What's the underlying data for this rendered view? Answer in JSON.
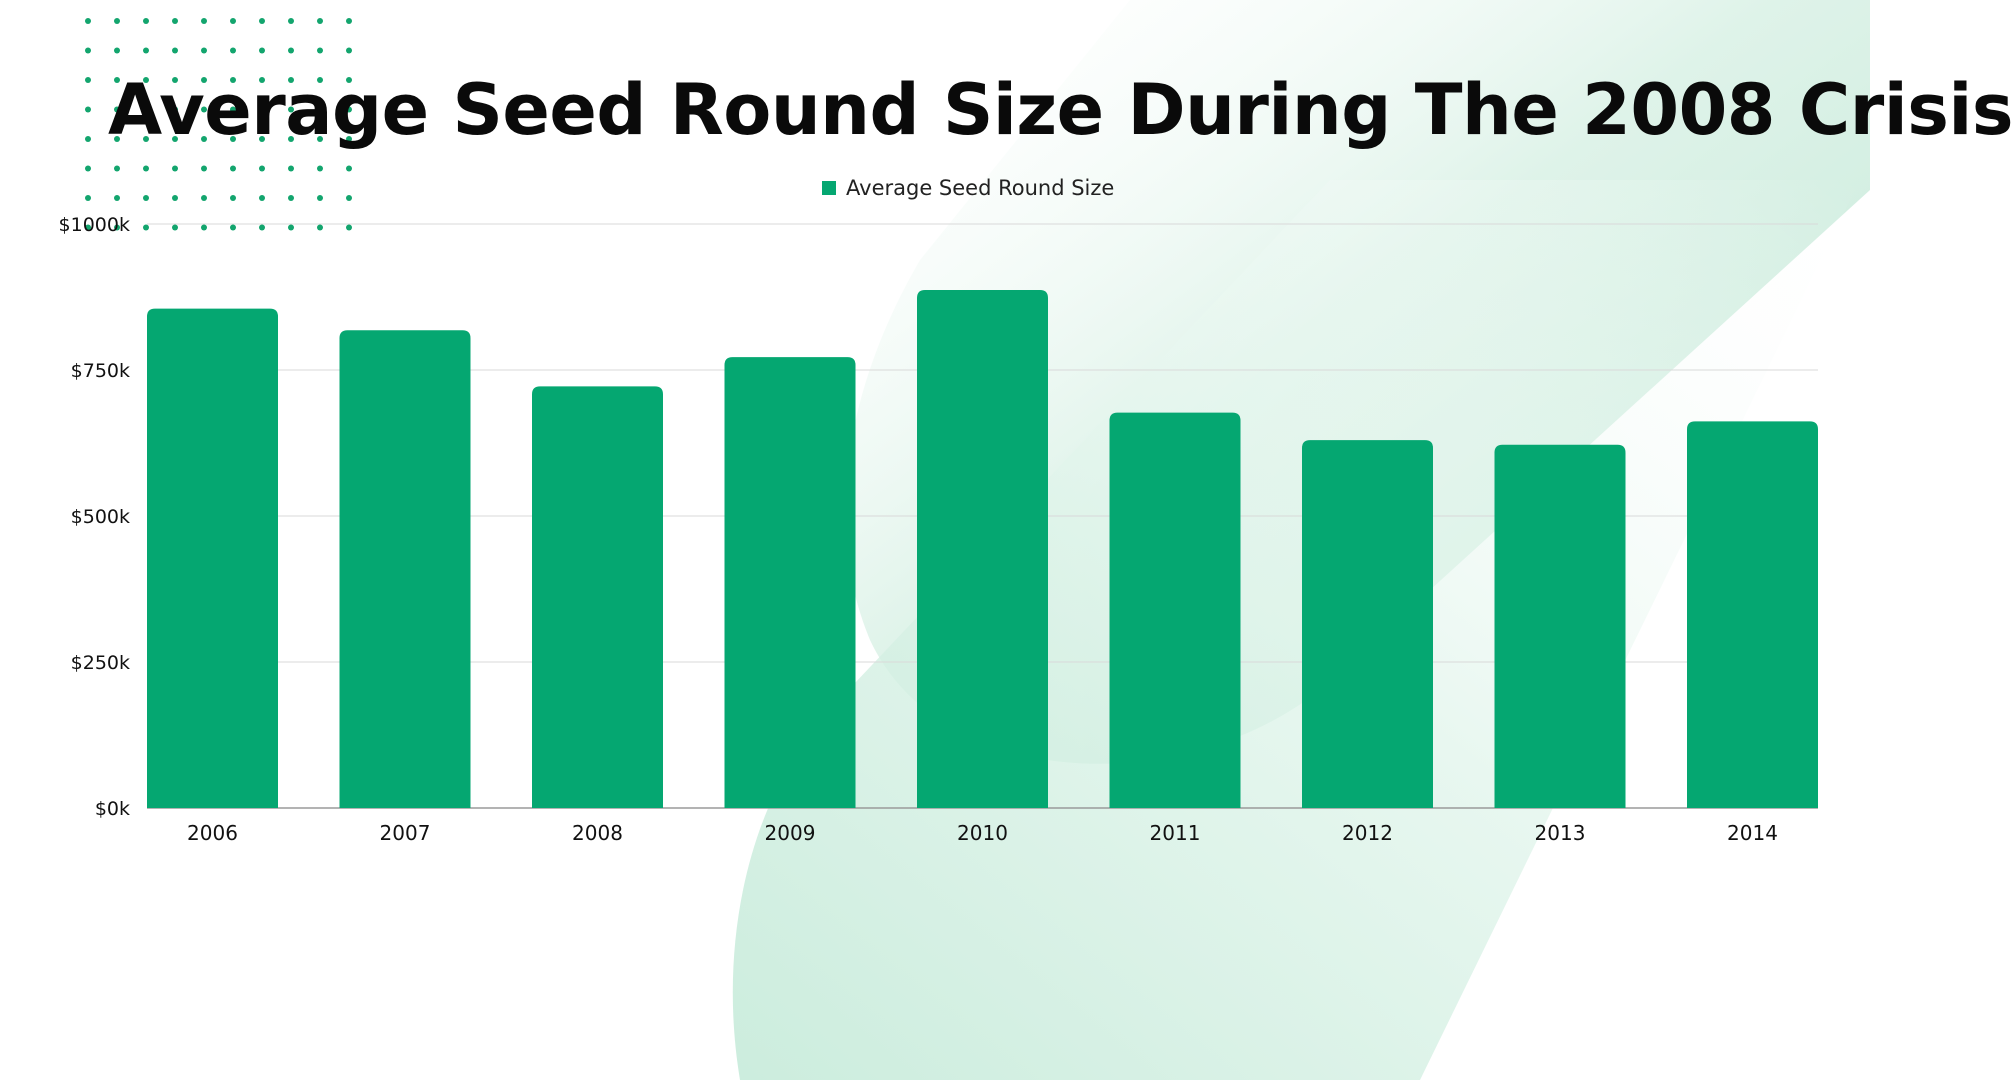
{
  "colors": {
    "bar": "#05a771",
    "grid": "#d9d9d9",
    "axis_text": "#111111",
    "dots": "#13a56e",
    "backdrop": "#bfe8d5"
  },
  "header": {
    "title": "Average Seed Round Size During The 2008 Crisis"
  },
  "chart_data": {
    "type": "bar",
    "title": "Average Seed Round Size During The 2008 Crisis",
    "categories": [
      "2006",
      "2007",
      "2008",
      "2009",
      "2010",
      "2011",
      "2012",
      "2013",
      "2014"
    ],
    "series": [
      {
        "name": "Average Seed Round Size",
        "values": [
          855,
          818,
          722,
          772,
          887,
          677,
          630,
          622,
          662
        ]
      }
    ],
    "y_unit": "$k",
    "ylim": [
      0,
      1000
    ],
    "yticks": [
      0,
      250,
      500,
      750,
      1000
    ],
    "ytick_labels": [
      "$0k",
      "$250k",
      "$500k",
      "$750k",
      "$1000k"
    ],
    "xlabel": "",
    "ylabel": "",
    "grid": true,
    "legend_position": "top-center"
  }
}
